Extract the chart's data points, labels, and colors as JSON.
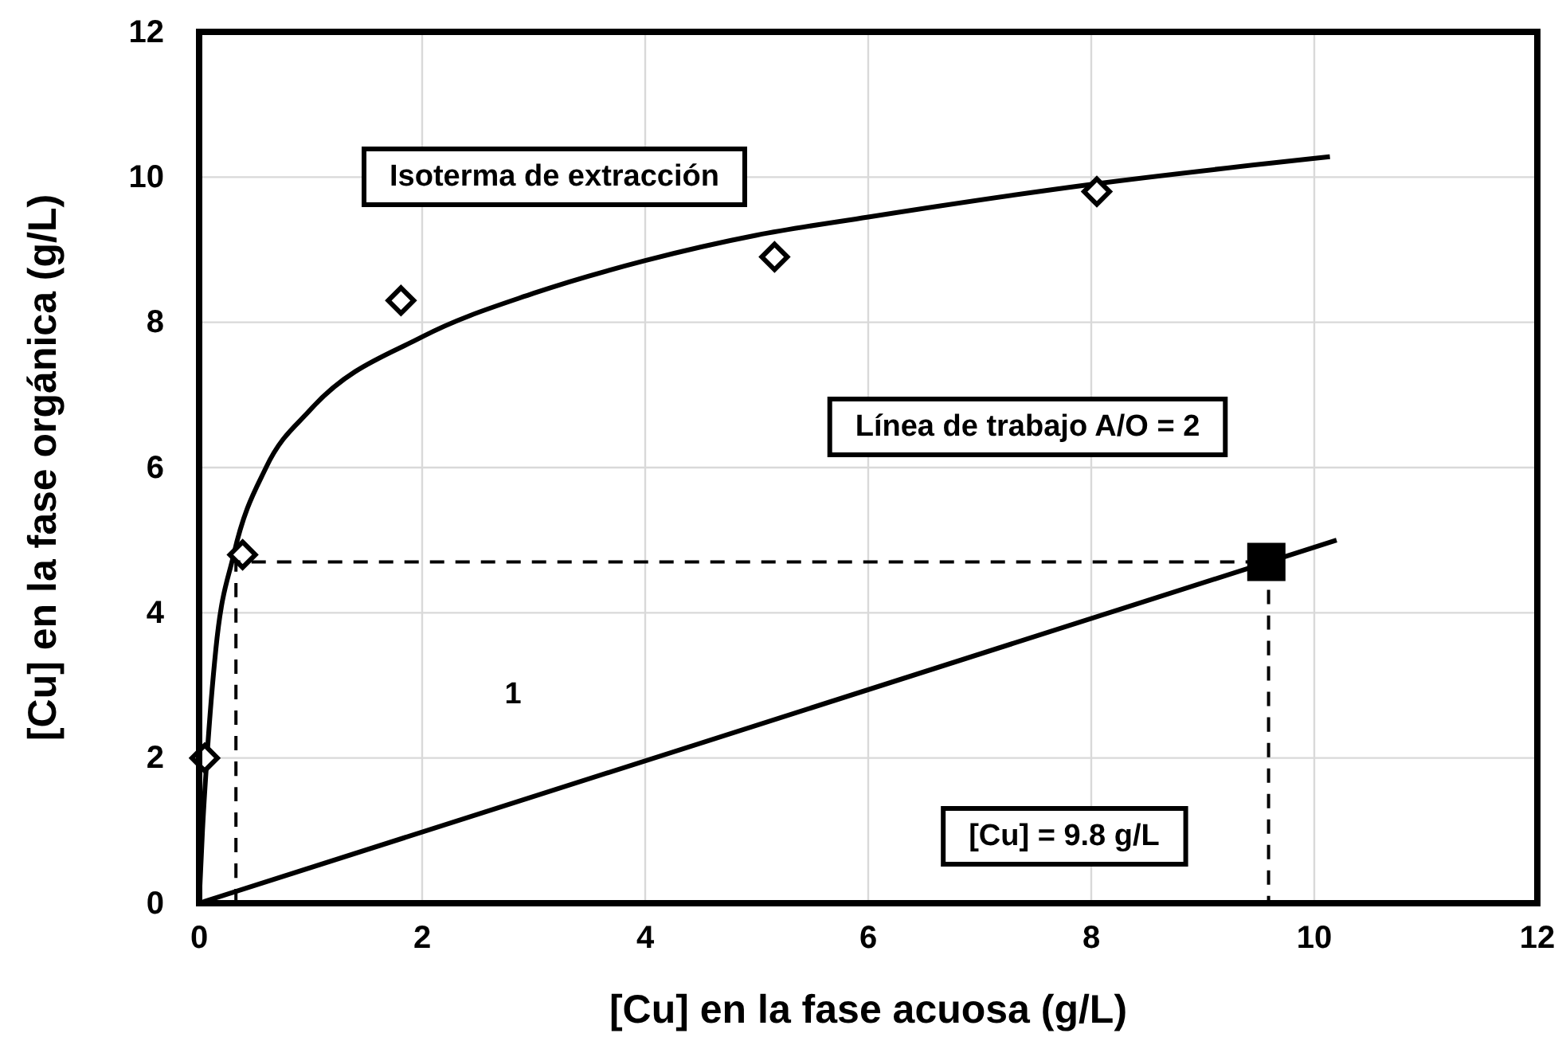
{
  "chart_data": {
    "type": "line",
    "xlabel": "[Cu] en la fase acuosa (g/L)",
    "ylabel": "[Cu] en la fase orgánica (g/L)",
    "xlim": [
      0,
      12
    ],
    "ylim": [
      0,
      12
    ],
    "xticks": [
      0,
      2,
      4,
      6,
      8,
      10,
      12
    ],
    "yticks": [
      0,
      2,
      4,
      6,
      8,
      10,
      12
    ],
    "grid": true,
    "series": [
      {
        "color": "#000000",
        "marker": "none",
        "line_style": "solid",
        "x": [
          0,
          0.03,
          0.07,
          0.15,
          0.31,
          0.6,
          1,
          2,
          3,
          4,
          5,
          6,
          8,
          10.14
        ],
        "values": [
          0,
          1,
          2,
          3.5,
          4.8,
          6,
          6.8,
          7.8,
          8.4,
          8.85,
          9.2,
          9.45,
          9.9,
          10.28
        ]
      },
      {
        "type": "scatter",
        "color": "#000000",
        "marker": "diamond",
        "x": [
          0.05,
          0.39,
          1.81,
          5.16,
          8.05
        ],
        "values": [
          2,
          4.8,
          8.3,
          8.9,
          9.8
        ]
      },
      {
        "color": "#000000",
        "marker": "none",
        "line_style": "solid",
        "x": [
          0,
          10.2
        ],
        "values": [
          0,
          5
        ]
      },
      {
        "color": "#000000",
        "marker": "none",
        "line_style": "dashed",
        "x": [
          0.33,
          0.33,
          9.59,
          9.59
        ],
        "values": [
          0,
          4.7,
          4.7,
          0
        ]
      },
      {
        "type": "scatter",
        "color": "#000000",
        "marker": "square",
        "x": [
          9.57
        ],
        "values": [
          4.7
        ]
      }
    ],
    "annotations": [
      "Isoterma de extracción",
      "Línea de trabajo A/O = 2",
      "[Cu] = 9.8 g/L",
      "1"
    ]
  }
}
